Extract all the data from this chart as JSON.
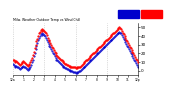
{
  "title": "Milw. Weather Outdoor Temp vs Wind Chill (24 Hours)",
  "bg_color": "#ffffff",
  "plot_bg_color": "#ffffff",
  "outdoor_temp_color": "#ff0000",
  "wind_chill_color": "#0000cc",
  "ylim_min": -5,
  "ylim_max": 55,
  "yticks": [
    0,
    10,
    20,
    30,
    40,
    50
  ],
  "outdoor_temp": [
    13,
    12,
    11,
    10,
    11,
    10,
    9,
    8,
    7,
    8,
    9,
    10,
    11,
    10,
    9,
    8,
    7,
    6,
    7,
    8,
    10,
    12,
    15,
    18,
    22,
    26,
    30,
    34,
    37,
    40,
    43,
    45,
    47,
    46,
    48,
    47,
    46,
    45,
    43,
    41,
    38,
    36,
    34,
    32,
    30,
    28,
    26,
    24,
    22,
    20,
    18,
    17,
    16,
    15,
    14,
    13,
    12,
    11,
    10,
    9,
    8,
    8,
    7,
    7,
    6,
    6,
    5,
    5,
    5,
    4,
    4,
    4,
    3,
    3,
    4,
    4,
    5,
    5,
    6,
    7,
    8,
    9,
    10,
    11,
    12,
    13,
    14,
    15,
    16,
    17,
    18,
    19,
    20,
    21,
    22,
    23,
    24,
    25,
    26,
    27,
    28,
    29,
    30,
    31,
    32,
    33,
    34,
    35,
    36,
    37,
    38,
    39,
    40,
    41,
    42,
    43,
    44,
    45,
    46,
    47,
    48,
    49,
    50,
    49,
    48,
    46,
    44,
    42,
    40,
    38,
    36,
    34,
    32,
    30,
    28,
    26,
    24,
    22,
    20,
    18,
    16,
    14,
    12,
    10
  ],
  "wind_chill": [
    8,
    7,
    6,
    5,
    6,
    5,
    4,
    3,
    2,
    3,
    4,
    5,
    6,
    5,
    4,
    3,
    2,
    1,
    2,
    3,
    5,
    7,
    10,
    13,
    17,
    21,
    25,
    29,
    32,
    35,
    38,
    40,
    42,
    41,
    43,
    42,
    41,
    40,
    38,
    36,
    33,
    31,
    29,
    27,
    25,
    23,
    21,
    19,
    17,
    15,
    13,
    12,
    11,
    10,
    9,
    8,
    7,
    6,
    5,
    4,
    3,
    3,
    2,
    2,
    1,
    1,
    0,
    0,
    0,
    -1,
    -1,
    -1,
    -2,
    -2,
    -1,
    -1,
    0,
    0,
    1,
    2,
    3,
    4,
    5,
    6,
    7,
    8,
    9,
    10,
    11,
    12,
    13,
    14,
    15,
    16,
    17,
    18,
    19,
    20,
    21,
    22,
    23,
    24,
    25,
    26,
    27,
    28,
    29,
    30,
    31,
    32,
    33,
    34,
    35,
    36,
    37,
    38,
    39,
    40,
    41,
    42,
    43,
    44,
    45,
    44,
    43,
    41,
    39,
    37,
    35,
    33,
    31,
    29,
    27,
    25,
    23,
    21,
    19,
    17,
    15,
    13,
    11,
    9,
    7,
    5
  ],
  "vline_positions": [
    0,
    36,
    72,
    108,
    143
  ],
  "xtick_positions": [
    0,
    12,
    24,
    36,
    48,
    60,
    72,
    84,
    96,
    108,
    120,
    132,
    143
  ],
  "xtick_labels": [
    "12a",
    "1",
    "2",
    "3",
    "4",
    "5",
    "6",
    "7",
    "8",
    "9",
    "10",
    "11",
    "12p"
  ]
}
